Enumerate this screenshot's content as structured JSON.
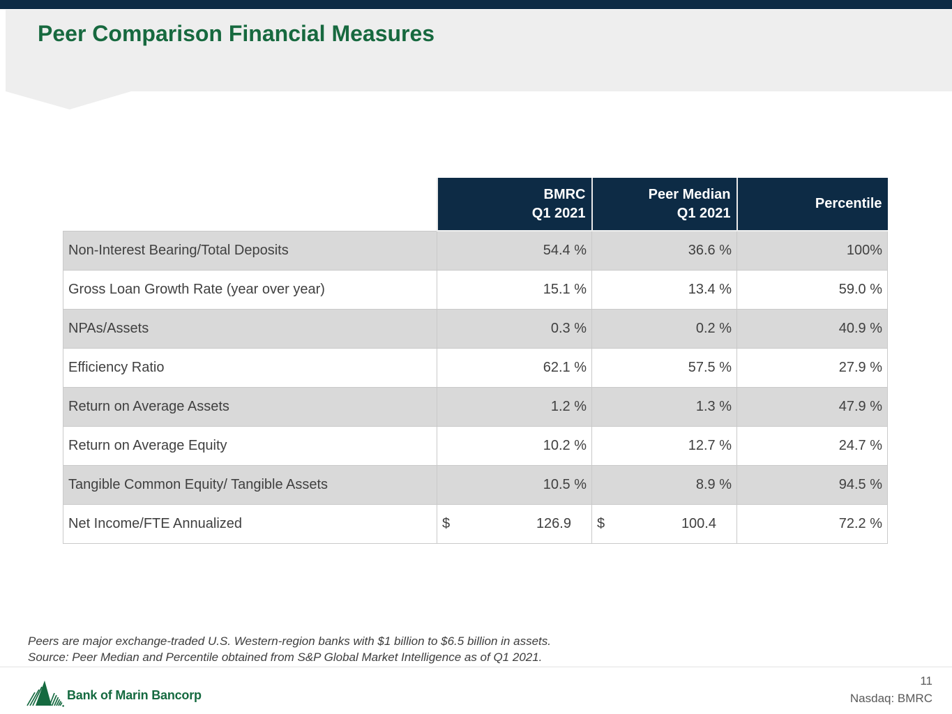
{
  "header": {
    "title": "Peer Comparison Financial Measures"
  },
  "table": {
    "columns": [
      "BMRC\nQ1 2021",
      "Peer Median\nQ1 2021",
      "Percentile"
    ],
    "rows": [
      {
        "label": "Non-Interest Bearing/Total Deposits",
        "cells": [
          {
            "prefix": "",
            "text": "54.4 %"
          },
          {
            "prefix": "",
            "text": "36.6 %"
          },
          {
            "prefix": "",
            "text": "100%"
          }
        ]
      },
      {
        "label": "Gross Loan Growth Rate (year over year)",
        "cells": [
          {
            "prefix": "",
            "text": "15.1 %"
          },
          {
            "prefix": "",
            "text": "13.4 %"
          },
          {
            "prefix": "",
            "text": "59.0 %"
          }
        ]
      },
      {
        "label": "NPAs/Assets",
        "cells": [
          {
            "prefix": "",
            "text": "0.3 %"
          },
          {
            "prefix": "",
            "text": "0.2 %"
          },
          {
            "prefix": "",
            "text": "40.9 %"
          }
        ]
      },
      {
        "label": "Efficiency Ratio",
        "cells": [
          {
            "prefix": "",
            "text": "62.1 %"
          },
          {
            "prefix": "",
            "text": "57.5 %"
          },
          {
            "prefix": "",
            "text": "27.9 %"
          }
        ]
      },
      {
        "label": "Return on Average Assets",
        "cells": [
          {
            "prefix": "",
            "text": "1.2 %"
          },
          {
            "prefix": "",
            "text": "1.3 %"
          },
          {
            "prefix": "",
            "text": "47.9 %"
          }
        ]
      },
      {
        "label": "Return on Average Equity",
        "cells": [
          {
            "prefix": "",
            "text": "10.2 %"
          },
          {
            "prefix": "",
            "text": "12.7 %"
          },
          {
            "prefix": "",
            "text": "24.7 %"
          }
        ]
      },
      {
        "label": "Tangible Common Equity/ Tangible Assets",
        "cells": [
          {
            "prefix": "",
            "text": "10.5 %"
          },
          {
            "prefix": "",
            "text": "8.9 %"
          },
          {
            "prefix": "",
            "text": "94.5 %"
          }
        ]
      },
      {
        "label": "Net Income/FTE Annualized",
        "cells": [
          {
            "prefix": "$",
            "text": "126.9"
          },
          {
            "prefix": "$",
            "text": "100.4"
          },
          {
            "prefix": "",
            "text": "72.2 %"
          }
        ]
      }
    ]
  },
  "footnotes": [
    "Peers are major exchange-traded U.S. Western-region banks with $1 billion to $6.5 billion in assets.",
    "Source: Peer Median and Percentile obtained from S&P Global Market Intelligence as of Q1 2021."
  ],
  "footer": {
    "logo_text": "Bank of Marin Bancorp",
    "page_number": "11",
    "ticker": "Nasdaq: BMRC"
  },
  "colors": {
    "navy": "#0d2b45",
    "title_green": "#17693f",
    "logo_green": "#156a40",
    "band_gray": "#eeeeee",
    "row_gray": "#d9d9d9",
    "text_gray": "#404040",
    "footer_text_gray": "#595959"
  }
}
